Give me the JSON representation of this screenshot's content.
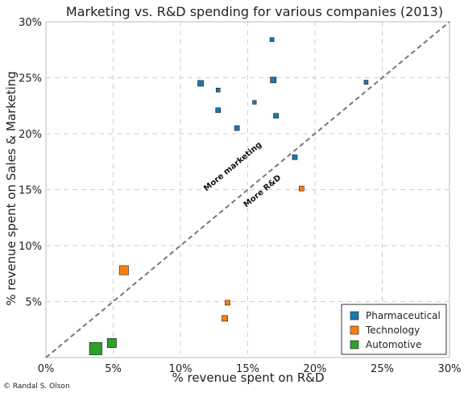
{
  "chart_data": {
    "type": "scatter",
    "title": "Marketing vs. R&D spending for various companies (2013)",
    "xlabel": "% revenue spent on R&D",
    "ylabel": "% revenue spent on Sales & Marketing",
    "xlim": [
      0,
      30
    ],
    "ylim": [
      0,
      30
    ],
    "xticks": [
      0,
      5,
      10,
      15,
      20,
      25,
      30
    ],
    "xtick_labels": [
      "0%",
      "5%",
      "10%",
      "15%",
      "20%",
      "25%",
      "30%"
    ],
    "yticks": [
      5,
      10,
      15,
      20,
      25,
      30
    ],
    "ytick_labels": [
      "5%",
      "10%",
      "15%",
      "20%",
      "25%",
      "30%"
    ],
    "grid": true,
    "legend_position": "bottom-right",
    "diagonal": {
      "type": "dashed",
      "from": [
        0,
        0
      ],
      "to": [
        30,
        30
      ]
    },
    "annotations": [
      {
        "text": "More marketing",
        "side": "above-diagonal"
      },
      {
        "text": "More R&D",
        "side": "below-diagonal"
      }
    ],
    "series": [
      {
        "name": "Pharmaceutical",
        "color": "#1f77b4",
        "points": [
          {
            "x": 16.8,
            "y": 28.4,
            "size": 1
          },
          {
            "x": 11.5,
            "y": 24.5,
            "size": 2
          },
          {
            "x": 12.8,
            "y": 23.9,
            "size": 1
          },
          {
            "x": 16.9,
            "y": 24.8,
            "size": 2
          },
          {
            "x": 23.8,
            "y": 24.6,
            "size": 1
          },
          {
            "x": 15.5,
            "y": 22.8,
            "size": 0.8
          },
          {
            "x": 12.8,
            "y": 22.1,
            "size": 1.5
          },
          {
            "x": 17.1,
            "y": 21.6,
            "size": 1.5
          },
          {
            "x": 14.2,
            "y": 20.5,
            "size": 1.5
          },
          {
            "x": 18.5,
            "y": 17.9,
            "size": 1.5
          }
        ]
      },
      {
        "name": "Technology",
        "color": "#ff7f0e",
        "points": [
          {
            "x": 19.0,
            "y": 15.1,
            "size": 1.5
          },
          {
            "x": 5.8,
            "y": 7.8,
            "size": 4
          },
          {
            "x": 13.5,
            "y": 4.9,
            "size": 1.5
          },
          {
            "x": 13.3,
            "y": 3.5,
            "size": 2
          }
        ]
      },
      {
        "name": "Automotive",
        "color": "#2ca02c",
        "points": [
          {
            "x": 3.7,
            "y": 0.8,
            "size": 6
          },
          {
            "x": 4.9,
            "y": 1.3,
            "size": 4
          }
        ]
      }
    ]
  },
  "credit": "© Randal S. Olson"
}
